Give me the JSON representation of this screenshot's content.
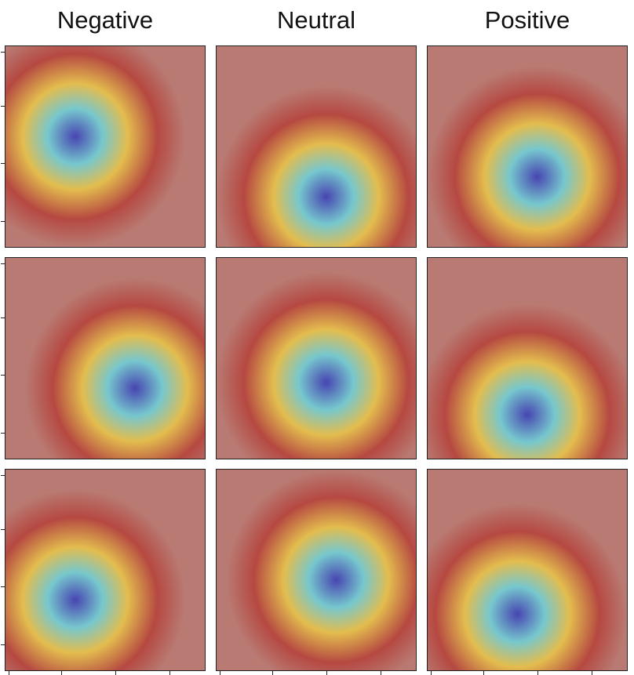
{
  "columns": [
    {
      "label": "Negative"
    },
    {
      "label": "Neutral"
    },
    {
      "label": "Positive"
    }
  ],
  "panels": [
    {
      "row": 0,
      "col": 0,
      "icon": "face-heatmap"
    },
    {
      "row": 0,
      "col": 1,
      "icon": "face-heatmap"
    },
    {
      "row": 0,
      "col": 2,
      "icon": "face-heatmap"
    },
    {
      "row": 1,
      "col": 0,
      "icon": "face-heatmap"
    },
    {
      "row": 1,
      "col": 1,
      "icon": "face-heatmap"
    },
    {
      "row": 1,
      "col": 2,
      "icon": "face-heatmap"
    },
    {
      "row": 2,
      "col": 0,
      "icon": "face-heatmap"
    },
    {
      "row": 2,
      "col": 1,
      "icon": "face-heatmap"
    },
    {
      "row": 2,
      "col": 2,
      "icon": "face-heatmap"
    }
  ],
  "colors": {
    "skin": "#b87a72",
    "hot": "#b5433c",
    "warm": "#e8c44a",
    "cool": "#6fd0d8",
    "cold": "#3b3fb8"
  }
}
